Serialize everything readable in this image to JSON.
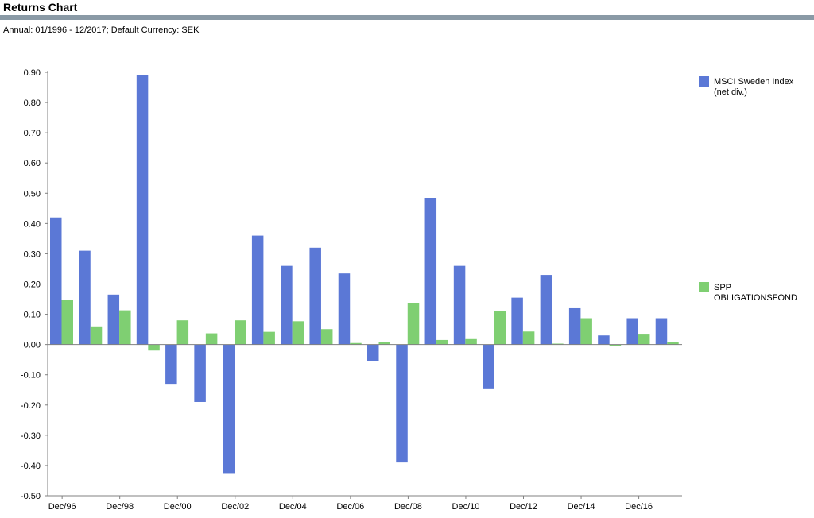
{
  "header": {
    "title": "Returns Chart",
    "subtitle": "Annual: 01/1996 - 12/2017; Default Currency: SEK"
  },
  "colors": {
    "header_bar": "#8a9aa6",
    "series_1": "#5b78d6",
    "series_2": "#7fcf72",
    "axis": "#808080"
  },
  "chart_data": {
    "type": "bar",
    "title": "Returns Chart",
    "subtitle": "Annual: 01/1996 - 12/2017; Default Currency: SEK",
    "categories": [
      "1996",
      "1997",
      "1998",
      "1999",
      "2000",
      "2001",
      "2002",
      "2003",
      "2004",
      "2005",
      "2006",
      "2007",
      "2008",
      "2009",
      "2010",
      "2011",
      "2012",
      "2013",
      "2014",
      "2015",
      "2016",
      "2017"
    ],
    "x_tick_labels": [
      "Dec/96",
      "Dec/98",
      "Dec/00",
      "Dec/02",
      "Dec/04",
      "Dec/06",
      "Dec/08",
      "Dec/10",
      "Dec/12",
      "Dec/14",
      "Dec/16"
    ],
    "y_tick_labels": [
      "0.90",
      "0.80",
      "0.70",
      "0.60",
      "0.50",
      "0.40",
      "0.30",
      "0.20",
      "0.10",
      "0.00",
      "-0.10",
      "-0.20",
      "-0.30",
      "-0.40",
      "-0.50"
    ],
    "ylim": [
      -0.5,
      0.9
    ],
    "series": [
      {
        "name": "MSCI Sweden Index (net div.)",
        "legend_lines": [
          "MSCI Sweden Index",
          "(net div.)"
        ],
        "values": [
          0.42,
          0.31,
          0.165,
          0.89,
          -0.13,
          -0.19,
          -0.425,
          0.36,
          0.26,
          0.32,
          0.235,
          -0.055,
          -0.39,
          0.485,
          0.26,
          -0.145,
          0.155,
          0.23,
          0.12,
          0.03,
          0.087,
          0.087
        ]
      },
      {
        "name": "SPP OBLIGATIONSFOND",
        "legend_lines": [
          "SPP",
          "OBLIGATIONSFOND"
        ],
        "values": [
          0.148,
          0.06,
          0.113,
          -0.02,
          0.08,
          0.037,
          0.08,
          0.042,
          0.077,
          0.051,
          0.005,
          0.008,
          0.138,
          0.015,
          0.018,
          0.11,
          0.043,
          0.003,
          0.087,
          -0.005,
          0.033,
          0.008
        ]
      }
    ],
    "grid": false,
    "legend_position": "right"
  }
}
